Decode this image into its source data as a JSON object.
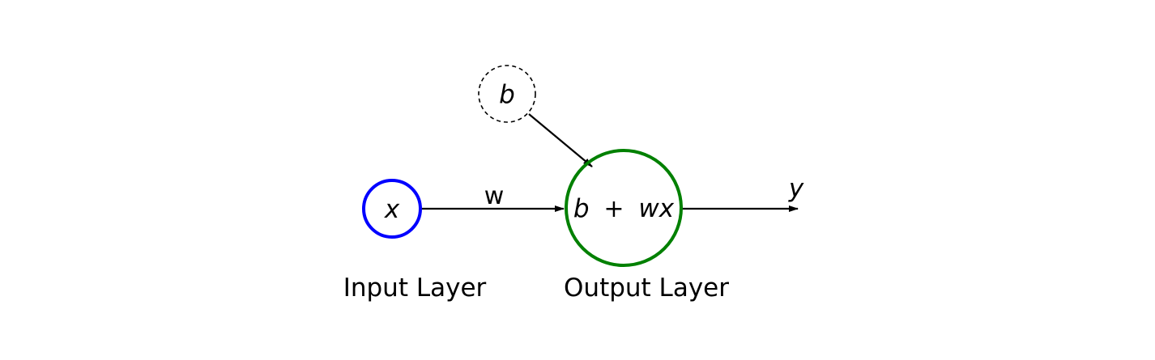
{
  "nodes": {
    "input": {
      "label": "x",
      "stroke": "#0000ff"
    },
    "bias": {
      "label": "b",
      "stroke": "#000000",
      "style": "dashed"
    },
    "output": {
      "label_left": "b",
      "label_op": "+",
      "label_right": "wx",
      "stroke": "#008000"
    }
  },
  "edges": {
    "weight_label": "w",
    "output_label": "y"
  },
  "layers": {
    "input": "Input Layer",
    "output": "Output Layer"
  }
}
